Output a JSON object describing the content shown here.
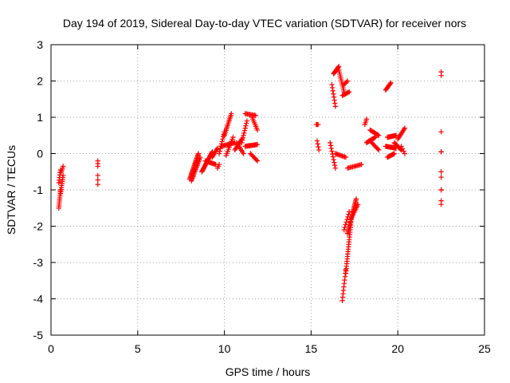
{
  "chart_data": {
    "type": "scatter",
    "title": "Day 194 of 2019, Sidereal Day-to-day VTEC variation (SDTVAR) for receiver nors",
    "xlabel": "GPS time / hours",
    "ylabel": "SDTVAR / TECUs",
    "xlim": [
      0,
      25
    ],
    "ylim": [
      -5,
      3
    ],
    "xticks": [
      0,
      5,
      10,
      15,
      20,
      25
    ],
    "yticks": [
      -5,
      -4,
      -3,
      -2,
      -1,
      0,
      1,
      2,
      3
    ],
    "grid": true,
    "marker": "plus",
    "color": "#ff0000",
    "segments": [
      {
        "t0": 0.45,
        "t1": 0.55,
        "v0": -1.5,
        "v1": -1.0,
        "n": 10
      },
      {
        "t0": 0.45,
        "t1": 0.55,
        "v0": -0.8,
        "v1": -0.45,
        "n": 6
      },
      {
        "t0": 0.55,
        "t1": 0.7,
        "v0": -1.1,
        "v1": -0.6,
        "n": 10
      },
      {
        "t0": 0.6,
        "t1": 0.7,
        "v0": -0.5,
        "v1": -0.35,
        "n": 4
      },
      {
        "t0": 2.7,
        "t1": 2.7,
        "v0": -0.85,
        "v1": -0.6,
        "n": 3
      },
      {
        "t0": 2.7,
        "t1": 2.7,
        "v0": -0.35,
        "v1": -0.2,
        "n": 3
      },
      {
        "t0": 8.0,
        "t1": 8.5,
        "v0": -0.7,
        "v1": 0.0,
        "n": 22
      },
      {
        "t0": 8.1,
        "t1": 8.6,
        "v0": -0.75,
        "v1": -0.1,
        "n": 18
      },
      {
        "t0": 8.7,
        "t1": 9.3,
        "v0": -0.5,
        "v1": 0.05,
        "n": 22
      },
      {
        "t0": 8.9,
        "t1": 9.5,
        "v0": -0.2,
        "v1": -0.3,
        "n": 12
      },
      {
        "t0": 9.3,
        "t1": 9.6,
        "v0": -0.1,
        "v1": 0.15,
        "n": 8
      },
      {
        "t0": 9.6,
        "t1": 9.7,
        "v0": -0.4,
        "v1": -0.3,
        "n": 3
      },
      {
        "t0": 9.7,
        "t1": 10.0,
        "v0": 0.0,
        "v1": 0.6,
        "n": 10
      },
      {
        "t0": 10.0,
        "t1": 10.4,
        "v0": 0.5,
        "v1": 1.1,
        "n": 14
      },
      {
        "t0": 9.8,
        "t1": 10.6,
        "v0": 0.2,
        "v1": 0.3,
        "n": 14
      },
      {
        "t0": 10.1,
        "t1": 10.5,
        "v0": -0.05,
        "v1": 0.45,
        "n": 10
      },
      {
        "t0": 10.6,
        "t1": 11.0,
        "v0": 0.1,
        "v1": 0.4,
        "n": 10
      },
      {
        "t0": 10.7,
        "t1": 11.1,
        "v0": 0.3,
        "v1": 0.0,
        "n": 8
      },
      {
        "t0": 11.0,
        "t1": 11.3,
        "v0": 0.3,
        "v1": 0.9,
        "n": 10
      },
      {
        "t0": 11.2,
        "t1": 11.8,
        "v0": 1.1,
        "v1": 1.05,
        "n": 10
      },
      {
        "t0": 11.6,
        "t1": 11.9,
        "v0": 1.0,
        "v1": 0.65,
        "n": 8
      },
      {
        "t0": 11.2,
        "t1": 11.9,
        "v0": 0.2,
        "v1": 0.25,
        "n": 14
      },
      {
        "t0": 11.5,
        "t1": 11.9,
        "v0": 0.0,
        "v1": -0.2,
        "n": 8
      },
      {
        "t0": 15.3,
        "t1": 15.4,
        "v0": 0.8,
        "v1": 0.8,
        "n": 3
      },
      {
        "t0": 15.35,
        "t1": 15.45,
        "v0": 0.35,
        "v1": 0.1,
        "n": 4
      },
      {
        "t0": 16.2,
        "t1": 16.4,
        "v0": 1.9,
        "v1": 1.3,
        "n": 8
      },
      {
        "t0": 16.3,
        "t1": 16.6,
        "v0": 2.2,
        "v1": 2.4,
        "n": 10
      },
      {
        "t0": 16.6,
        "t1": 16.9,
        "v0": 2.3,
        "v1": 1.7,
        "n": 12
      },
      {
        "t0": 16.8,
        "t1": 17.2,
        "v0": 1.6,
        "v1": 1.7,
        "n": 8
      },
      {
        "t0": 16.9,
        "t1": 17.1,
        "v0": 1.9,
        "v1": 2.0,
        "n": 4
      },
      {
        "t0": 16.1,
        "t1": 16.4,
        "v0": 0.3,
        "v1": -0.4,
        "n": 10
      },
      {
        "t0": 16.4,
        "t1": 17.0,
        "v0": 0.0,
        "v1": -0.1,
        "n": 10
      },
      {
        "t0": 16.8,
        "t1": 17.0,
        "v0": -4.05,
        "v1": -3.2,
        "n": 10
      },
      {
        "t0": 17.0,
        "t1": 17.3,
        "v0": -3.3,
        "v1": -1.9,
        "n": 22
      },
      {
        "t0": 17.1,
        "t1": 17.6,
        "v0": -2.2,
        "v1": -1.25,
        "n": 24
      },
      {
        "t0": 16.9,
        "t1": 17.2,
        "v0": -2.1,
        "v1": -1.6,
        "n": 8
      },
      {
        "t0": 17.3,
        "t1": 17.7,
        "v0": -1.8,
        "v1": -1.4,
        "n": 10
      },
      {
        "t0": 17.1,
        "t1": 17.9,
        "v0": -0.4,
        "v1": -0.3,
        "n": 12
      },
      {
        "t0": 18.1,
        "t1": 18.2,
        "v0": 0.8,
        "v1": 0.95,
        "n": 4
      },
      {
        "t0": 18.2,
        "t1": 18.7,
        "v0": 0.3,
        "v1": 0.45,
        "n": 12
      },
      {
        "t0": 18.4,
        "t1": 18.9,
        "v0": 0.65,
        "v1": 0.5,
        "n": 10
      },
      {
        "t0": 18.5,
        "t1": 18.9,
        "v0": 0.3,
        "v1": 0.1,
        "n": 8
      },
      {
        "t0": 19.3,
        "t1": 19.6,
        "v0": 1.75,
        "v1": 1.95,
        "n": 8
      },
      {
        "t0": 19.4,
        "t1": 19.9,
        "v0": 0.45,
        "v1": 0.5,
        "n": 12
      },
      {
        "t0": 19.3,
        "t1": 19.9,
        "v0": 0.2,
        "v1": 0.15,
        "n": 14
      },
      {
        "t0": 19.4,
        "t1": 19.8,
        "v0": -0.1,
        "v1": 0.0,
        "n": 10
      },
      {
        "t0": 19.8,
        "t1": 20.2,
        "v0": 0.3,
        "v1": 0.1,
        "n": 10
      },
      {
        "t0": 20.0,
        "t1": 20.4,
        "v0": 0.4,
        "v1": 0.7,
        "n": 10
      },
      {
        "t0": 20.2,
        "t1": 20.4,
        "v0": 0.2,
        "v1": 0.0,
        "n": 4
      },
      {
        "t0": 22.5,
        "t1": 22.5,
        "v0": 2.15,
        "v1": 2.25,
        "n": 2
      },
      {
        "t0": 22.5,
        "t1": 22.5,
        "v0": 0.6,
        "v1": 0.6,
        "n": 1
      },
      {
        "t0": 22.5,
        "t1": 22.5,
        "v0": 0.05,
        "v1": 0.05,
        "n": 2
      },
      {
        "t0": 22.5,
        "t1": 22.5,
        "v0": -0.65,
        "v1": -0.5,
        "n": 2
      },
      {
        "t0": 22.5,
        "t1": 22.5,
        "v0": -1.0,
        "v1": -1.0,
        "n": 2
      },
      {
        "t0": 22.5,
        "t1": 22.5,
        "v0": -1.4,
        "v1": -1.3,
        "n": 2
      }
    ]
  }
}
